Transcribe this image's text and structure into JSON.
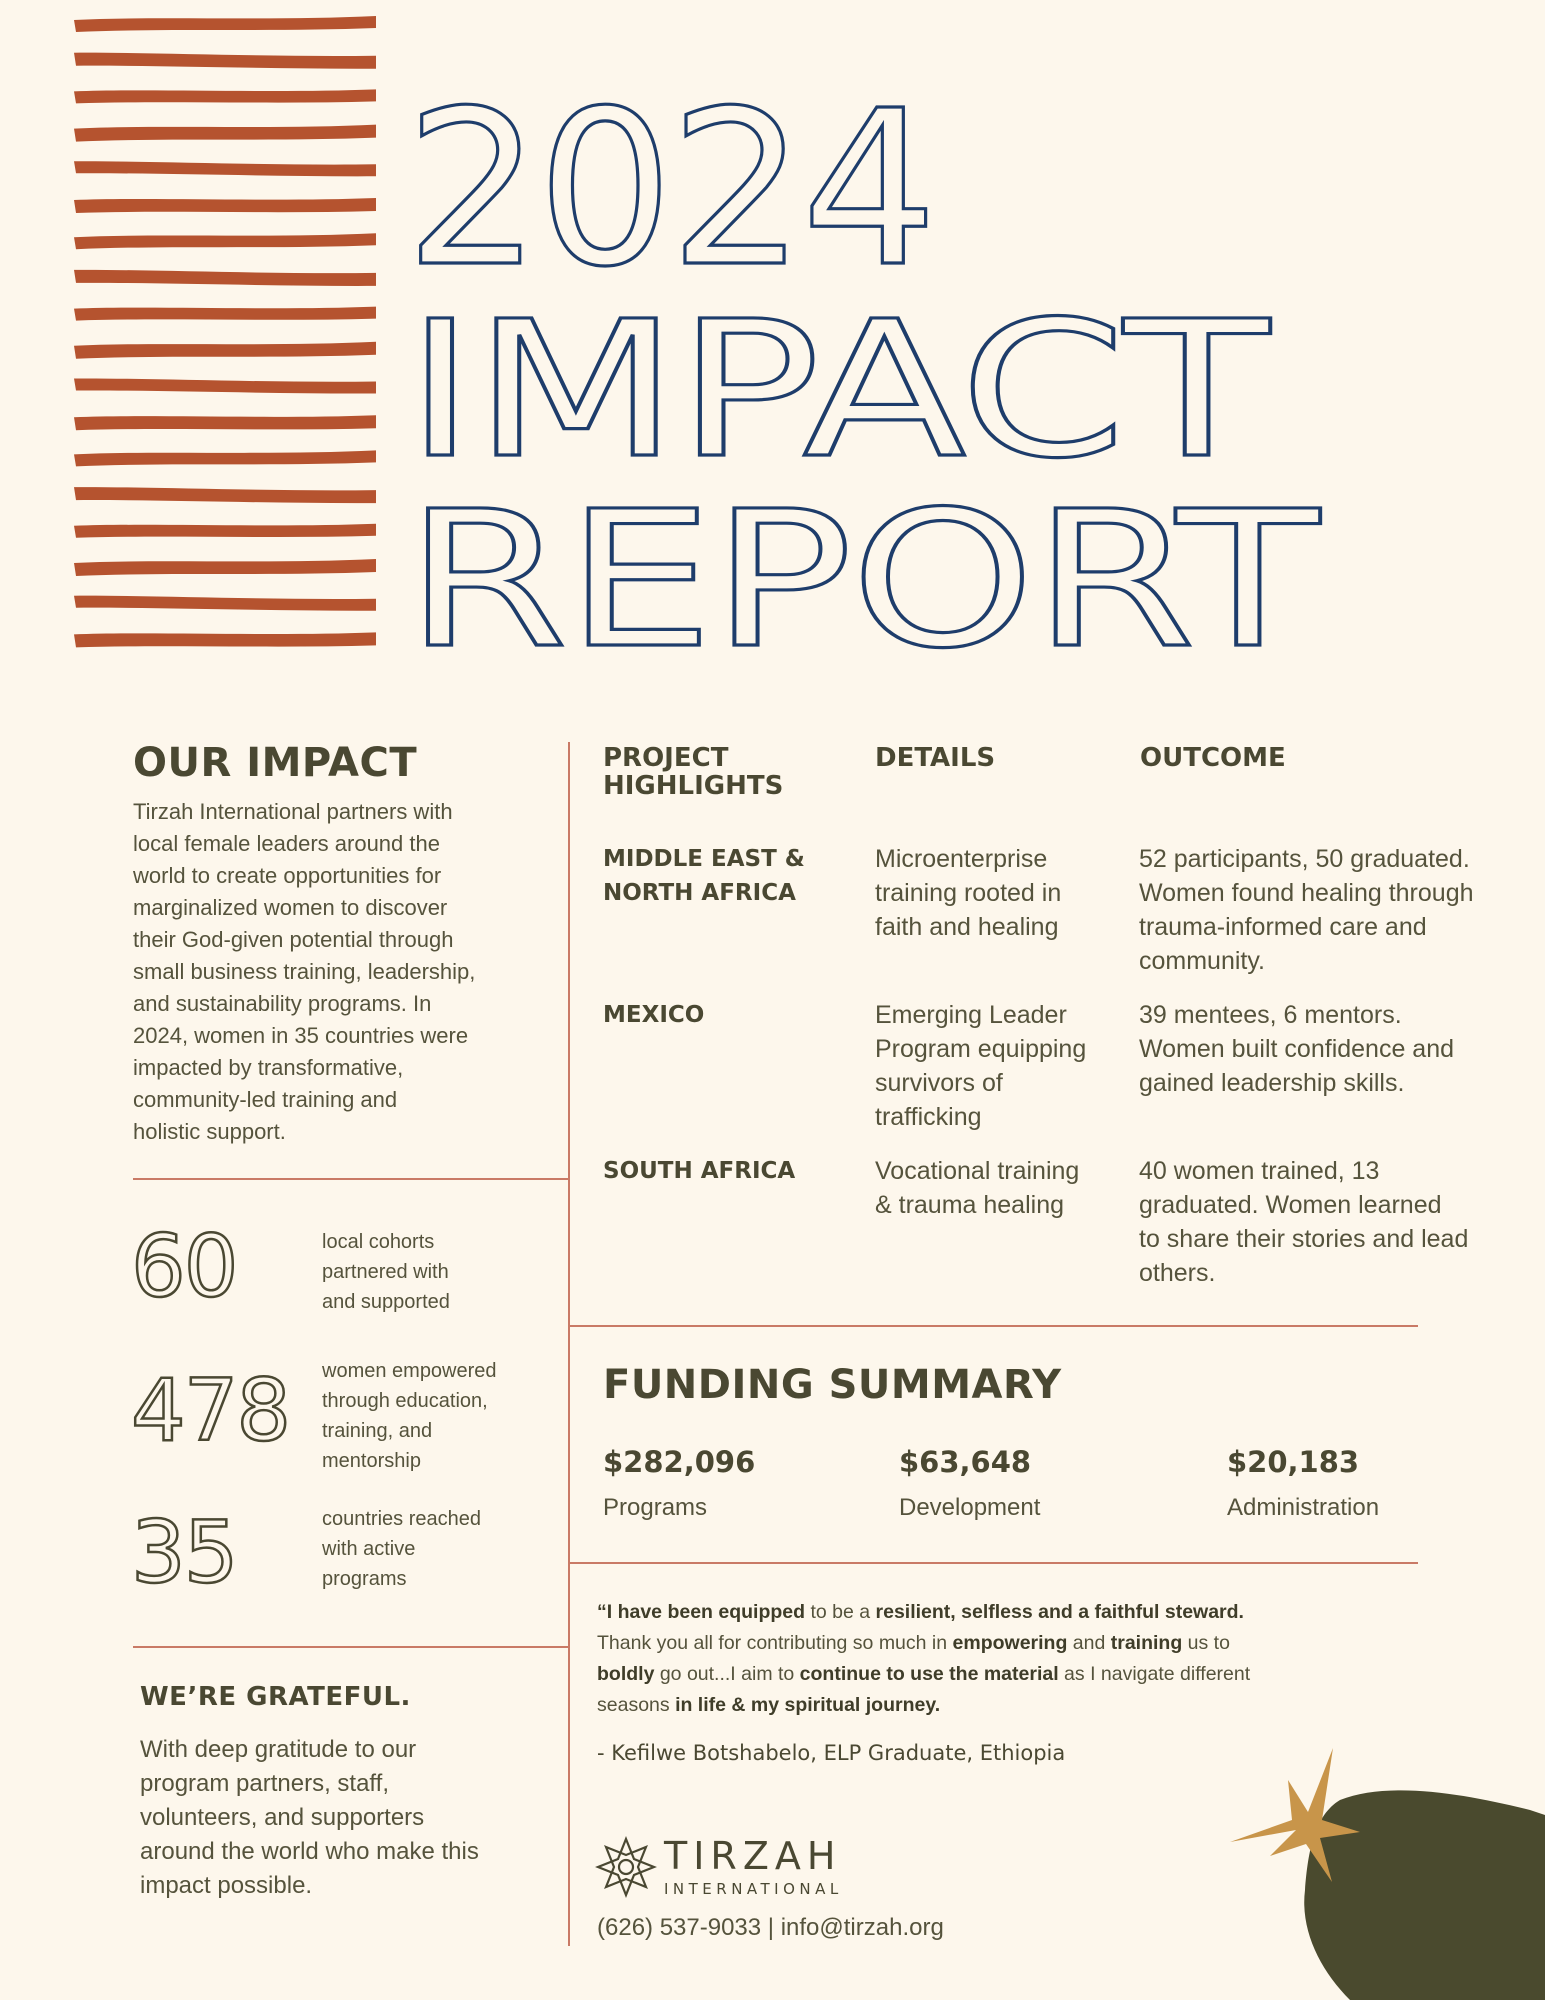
{
  "header": {
    "year": "2024",
    "title_line1": "IMPACT",
    "title_line2": "REPORT"
  },
  "colors": {
    "background": "#fdf7ec",
    "stripe": "#b5532f",
    "headline_outline": "#1e3d6b",
    "text_dark": "#4a4832",
    "divider": "#c97a66",
    "star": "#c8954a",
    "blob": "#4a4a2e"
  },
  "our_impact": {
    "heading": "OUR IMPACT",
    "lines": [
      "Tirzah International partners with",
      "local female leaders around the",
      "world to create opportunities for",
      "marginalized women to discover",
      "their God-given potential through",
      "small business training, leadership,",
      "and sustainability programs. In",
      "2024, women in 35 countries were",
      "impacted by transformative,",
      "community-led training and",
      "holistic support."
    ]
  },
  "stats": [
    {
      "number": "60",
      "label_lines": [
        "local cohorts",
        "partnered with",
        "and supported"
      ]
    },
    {
      "number": "478",
      "label_lines": [
        "women empowered",
        "through education,",
        "training, and",
        "mentorship"
      ]
    },
    {
      "number": "35",
      "label_lines": [
        "countries reached",
        "with active",
        "programs"
      ]
    }
  ],
  "grateful": {
    "heading": "WE’RE GRATEFUL.",
    "lines": [
      "With deep gratitude to our",
      "program partners, staff,",
      "volunteers, and supporters",
      "around the world who make this",
      "impact possible."
    ]
  },
  "projects": {
    "headers": {
      "col1_line1": "PROJECT",
      "col1_line2": "HIGHLIGHTS",
      "col2": "DETAILS",
      "col3": "OUTCOME"
    },
    "rows": [
      {
        "region_lines": [
          "MIDDLE EAST &",
          "NORTH AFRICA"
        ],
        "details_lines": [
          "Microenterprise",
          "training rooted in",
          "faith and healing"
        ],
        "outcome_lines": [
          "52 participants, 50 graduated.",
          "Women found healing through",
          "trauma-informed care and",
          "community."
        ]
      },
      {
        "region_lines": [
          "MEXICO"
        ],
        "details_lines": [
          "Emerging Leader",
          "Program equipping",
          "survivors of",
          "trafficking"
        ],
        "outcome_lines": [
          "39 mentees, 6 mentors.",
          "Women built confidence and",
          "gained leadership skills."
        ]
      },
      {
        "region_lines": [
          "SOUTH AFRICA"
        ],
        "details_lines": [
          "Vocational training",
          "& trauma healing"
        ],
        "outcome_lines": [
          "40 women trained, 13",
          "graduated. Women learned",
          "to share their stories and lead",
          "others."
        ]
      }
    ]
  },
  "funding": {
    "heading": "FUNDING SUMMARY",
    "items": [
      {
        "amount": "$282,096",
        "label": "Programs"
      },
      {
        "amount": "$63,648",
        "label": "Development"
      },
      {
        "amount": "$20,183",
        "label": "Administration"
      }
    ]
  },
  "testimonial": {
    "l1_b1": "“I have been equipped",
    "l1_t1": " to be a ",
    "l1_b2": "resilient, selfless and a faithful steward.",
    "l2_t1": "Thank you all for contributing so much in ",
    "l2_b1": "empowering",
    "l2_t2": " and ",
    "l2_b2": "training",
    "l2_t3": " us to",
    "l3_b1": "boldly",
    "l3_t1": " go out...I aim to ",
    "l3_b2": "continue to use the material",
    "l3_t2": " as I navigate different",
    "l4_t1": "seasons ",
    "l4_b1": "in life & my spiritual journey.",
    "attribution": "- Kefilwe Botshabelo, ELP Graduate, Ethiopia"
  },
  "footer": {
    "logo_name": "TIRZAH",
    "logo_sub": "INTERNATIONAL",
    "contact": "(626) 537-9033 |  info@tirzah.org"
  }
}
